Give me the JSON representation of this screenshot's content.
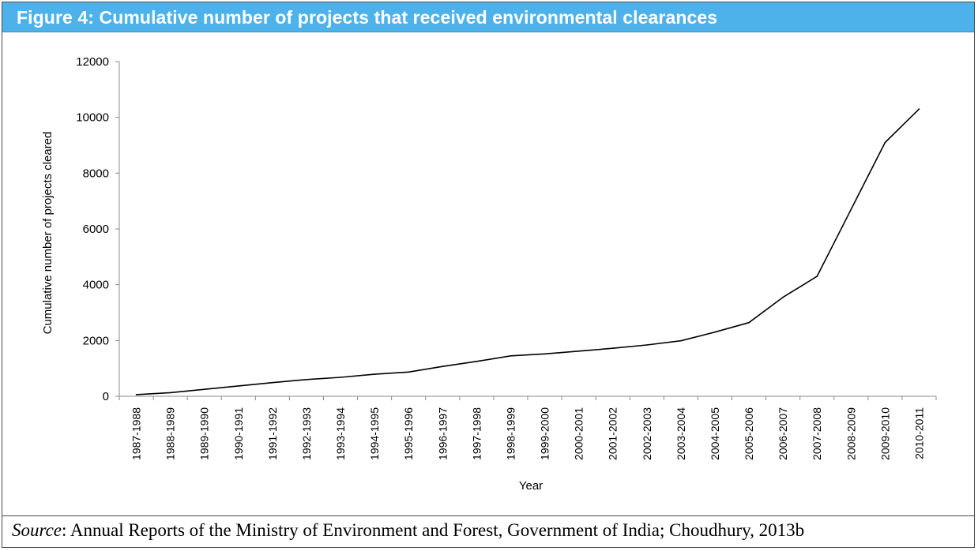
{
  "figure": {
    "title": "Figure 4: Cumulative number of projects that received environmental clearances",
    "source_label": "Source",
    "source_text": ": Annual Reports of the Ministry of Environment and Forest, Government of India; Choudhury, 2013b"
  },
  "chart_data": {
    "type": "line",
    "title": "",
    "xlabel": "Year",
    "ylabel": "Cumulative number of projects cleared",
    "ylim": [
      0,
      12000
    ],
    "yticks": [
      0,
      2000,
      4000,
      6000,
      8000,
      10000,
      12000
    ],
    "grid": false,
    "legend": "none",
    "categories": [
      "1987-1988",
      "1988-1989",
      "1989-1990",
      "1990-1991",
      "1991-1992",
      "1992-1993",
      "1993-1994",
      "1994-1995",
      "1995-1996",
      "1996-1997",
      "1997-1998",
      "1998-1999",
      "1999-2000",
      "2000-2001",
      "2001-2002",
      "2002-2003",
      "2003-2004",
      "2004-2005",
      "2005-2006",
      "2006-2007",
      "2007-2008",
      "2008-2009",
      "2009-2010",
      "2010-2011"
    ],
    "series": [
      {
        "values": [
          60,
          130,
          250,
          370,
          490,
          600,
          680,
          790,
          870,
          1070,
          1250,
          1450,
          1520,
          1620,
          1720,
          1840,
          1990,
          2300,
          2640,
          3550,
          4300,
          6700,
          9100,
          10300
        ],
        "color": "#000000"
      }
    ]
  }
}
